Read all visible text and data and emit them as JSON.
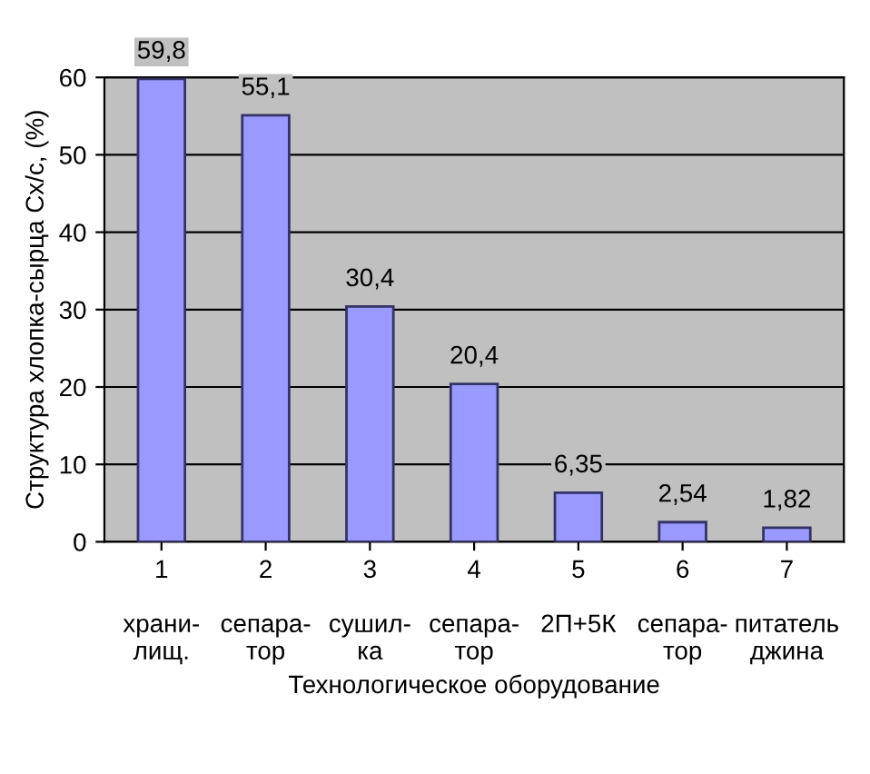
{
  "chart_data": {
    "type": "bar",
    "xlabel": "Технологическое оборудование",
    "ylabel": "Структура хлопка-сырца Сх/с, (%)",
    "categories": [
      "1\n\nхрани-\nлищ.",
      "2\n\nсепара-\nтор",
      "3\n\nсушил-\nка",
      "4\n\nсепара-\nтор",
      "5\n\n2П+5К",
      "6\n\nсепара-\nтор",
      "7\n\nпитатель\nджина"
    ],
    "values": [
      59.8,
      55.1,
      30.4,
      20.4,
      6.35,
      2.54,
      1.82
    ],
    "value_labels": [
      "59,8",
      "55,1",
      "30,4",
      "20,4",
      "6,35",
      "2,54",
      "1,82"
    ],
    "color": "#9999ff",
    "ylim": [
      0,
      60
    ],
    "yticks": [
      0,
      10,
      20,
      30,
      40,
      50,
      60
    ],
    "grid": "y"
  }
}
